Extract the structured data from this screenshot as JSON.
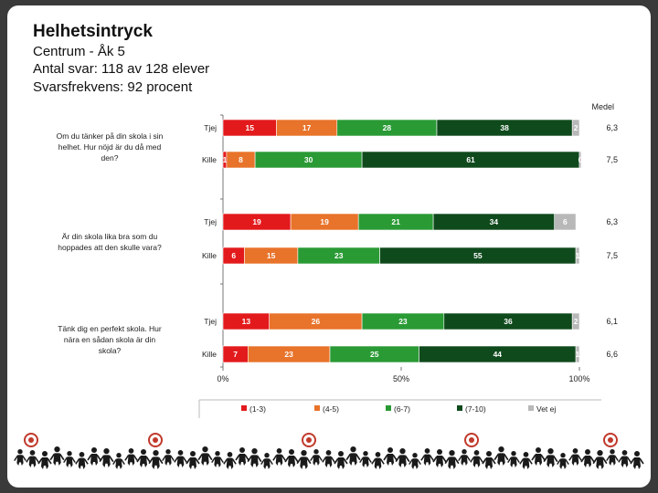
{
  "header": {
    "title": "Helhetsintryck",
    "subtitle_1": "Centrum - Åk 5",
    "subtitle_2": "Antal svar: 118 av 128 elever",
    "subtitle_3": "Svarsfrekvens: 92 procent"
  },
  "chart_data": {
    "type": "bar",
    "orientation": "horizontal",
    "stacked": true,
    "mean_header": "Medel",
    "x_ticks": [
      "0%",
      "50%",
      "100%"
    ],
    "xlim": [
      0,
      100
    ],
    "series": [
      {
        "name": "(1-3)",
        "color": "#e31a1c"
      },
      {
        "name": "(4-5)",
        "color": "#e8732a"
      },
      {
        "name": "(6-7)",
        "color": "#2a9a35"
      },
      {
        "name": "(7-10)",
        "color": "#0f4a1c"
      },
      {
        "name": "Vet ej",
        "color": "#b8b8b8"
      }
    ],
    "questions": [
      {
        "text": "Om du tänker på din skola i sin helhet. Hur nöjd är du då med den?",
        "rows": [
          {
            "group": "Tjej",
            "values": [
              15,
              17,
              28,
              38,
              2
            ],
            "mean": "6,3"
          },
          {
            "group": "Kille",
            "values": [
              1,
              8,
              30,
              61,
              0
            ],
            "mean": "7,5"
          }
        ]
      },
      {
        "text": "Är din skola lika bra som du hoppades att den skulle vara?",
        "rows": [
          {
            "group": "Tjej",
            "values": [
              19,
              19,
              21,
              34,
              6
            ],
            "mean": "6,3"
          },
          {
            "group": "Kille",
            "values": [
              6,
              15,
              23,
              55,
              1
            ],
            "mean": "7,5"
          }
        ]
      },
      {
        "text": "Tänk dig en perfekt skola. Hur nära en sådan skola är din skola?",
        "rows": [
          {
            "group": "Tjej",
            "values": [
              13,
              26,
              23,
              36,
              2
            ],
            "mean": "6,1"
          },
          {
            "group": "Kille",
            "values": [
              7,
              23,
              25,
              44,
              1
            ],
            "mean": "6,6"
          }
        ]
      }
    ]
  }
}
